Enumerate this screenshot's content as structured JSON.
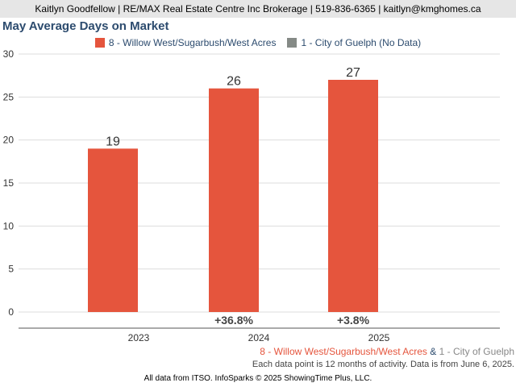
{
  "header": {
    "text": "Kaitlyn Goodfellow | RE/MAX Real Estate Centre Inc Brokerage | 519-836-6365 | kaitlyn@kmghomes.ca"
  },
  "chart_data": {
    "type": "bar",
    "title": "May Average Days on Market",
    "categories": [
      "2023",
      "2024",
      "2025"
    ],
    "series": [
      {
        "name": "8 - Willow West/Sugarbush/West Acres",
        "color": "#e5553d",
        "values": [
          19,
          26,
          27
        ],
        "value_labels": [
          "19",
          "26",
          "27"
        ]
      },
      {
        "name": "1 - City of Guelph (No Data)",
        "color": "#858a86",
        "values": [
          null,
          null,
          null
        ]
      }
    ],
    "change_labels": [
      "",
      "+36.8%",
      "+3.8%"
    ],
    "ylim": [
      0,
      30
    ],
    "yticks": [
      "0",
      "5",
      "10",
      "15",
      "20",
      "25",
      "30"
    ],
    "grid": true,
    "legend_position": "top-center",
    "xlabel": "",
    "ylabel": ""
  },
  "caption": {
    "series1": "8 - Willow West/Sugarbush/West Acres",
    "amp": "&",
    "series2": "1 - City of Guelph"
  },
  "note": "Each data point is 12 months of activity. Data is from June 6, 2025.",
  "footer": "All data from ITSO. InfoSparks © 2025 ShowingTime Plus, LLC."
}
